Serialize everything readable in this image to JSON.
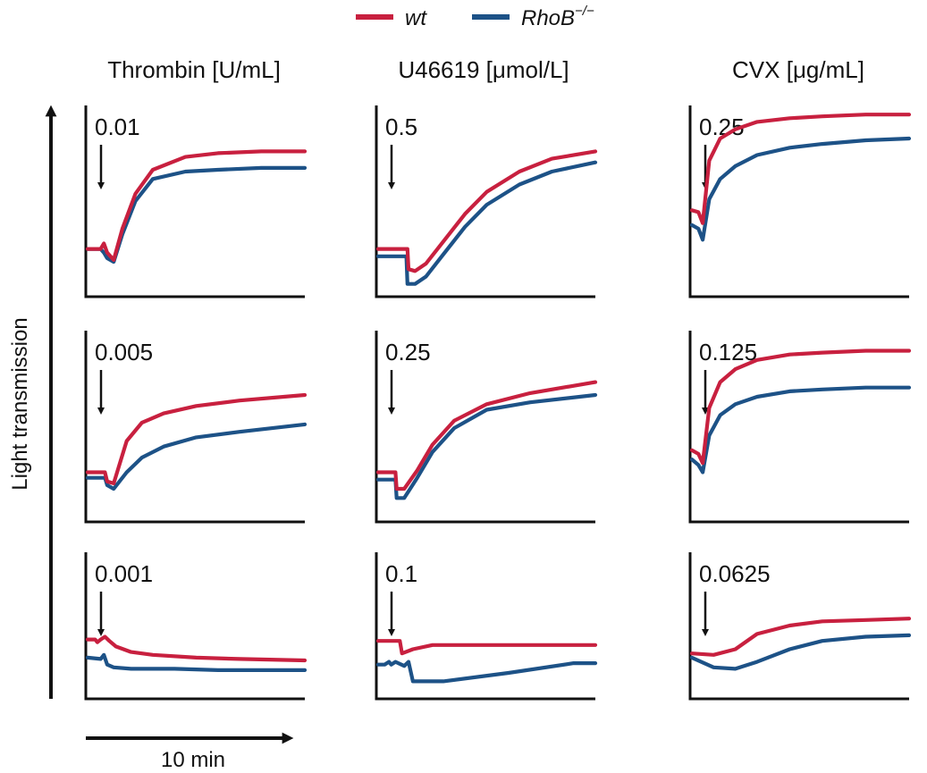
{
  "legend": {
    "wt": {
      "label": "wt",
      "color": "#c8203f"
    },
    "rhob": {
      "label": "RhoB",
      "superscript": "−/−",
      "color": "#1d5287"
    }
  },
  "axes": {
    "ylabel": "Light transmission",
    "xscale_label": "10 min"
  },
  "chart_data": {
    "type": "line",
    "title": "",
    "xlabel": "time (10 min scale bar)",
    "ylabel": "Light transmission",
    "x_domain": [
      0,
      10
    ],
    "ylim": [
      0,
      1
    ],
    "columns": [
      {
        "agonist": "Thrombin [U/mL]",
        "panels": [
          {
            "concentration": "0.01",
            "series": [
              {
                "name": "wt",
                "x": [
                  0,
                  0.6,
                  0.75,
                  0.9,
                  1.2,
                  1.6,
                  2.2,
                  3,
                  4.5,
                  6,
                  8,
                  10
                ],
                "values": [
                  0.24,
                  0.24,
                  0.27,
                  0.22,
                  0.18,
                  0.35,
                  0.54,
                  0.67,
                  0.74,
                  0.76,
                  0.77,
                  0.77
                ]
              },
              {
                "name": "RhoB−/−",
                "x": [
                  0,
                  0.6,
                  0.75,
                  0.9,
                  1.2,
                  1.6,
                  2.2,
                  3,
                  4.5,
                  6,
                  8,
                  10
                ],
                "values": [
                  0.24,
                  0.24,
                  0.22,
                  0.19,
                  0.17,
                  0.32,
                  0.5,
                  0.62,
                  0.66,
                  0.67,
                  0.68,
                  0.68
                ]
              }
            ]
          },
          {
            "concentration": "0.005",
            "series": [
              {
                "name": "wt",
                "x": [
                  0,
                  0.8,
                  0.9,
                  1.2,
                  1.8,
                  2.5,
                  3.5,
                  5,
                  7,
                  10
                ],
                "values": [
                  0.25,
                  0.25,
                  0.2,
                  0.19,
                  0.42,
                  0.52,
                  0.57,
                  0.61,
                  0.64,
                  0.67
                ]
              },
              {
                "name": "RhoB−/−",
                "x": [
                  0,
                  0.8,
                  0.9,
                  1.2,
                  1.8,
                  2.5,
                  3.5,
                  5,
                  7,
                  10
                ],
                "values": [
                  0.22,
                  0.22,
                  0.18,
                  0.16,
                  0.25,
                  0.33,
                  0.39,
                  0.44,
                  0.47,
                  0.51
                ]
              }
            ]
          },
          {
            "concentration": "0.001",
            "series": [
              {
                "name": "wt",
                "x": [
                  0,
                  0.35,
                  0.45,
                  0.6,
                  0.8,
                  1.0,
                  1.3,
                  2,
                  3,
                  5,
                  7,
                  10
                ],
                "values": [
                  0.4,
                  0.4,
                  0.38,
                  0.4,
                  0.42,
                  0.39,
                  0.35,
                  0.31,
                  0.29,
                  0.27,
                  0.26,
                  0.25
                ]
              },
              {
                "name": "RhoB−/−",
                "x": [
                  0,
                  0.6,
                  0.75,
                  0.9,
                  1.2,
                  2,
                  4,
                  6,
                  10
                ],
                "values": [
                  0.27,
                  0.26,
                  0.29,
                  0.22,
                  0.2,
                  0.19,
                  0.19,
                  0.18,
                  0.18
                ]
              }
            ]
          }
        ]
      },
      {
        "agonist": "U46619 [μmol/L]",
        "panels": [
          {
            "concentration": "0.5",
            "series": [
              {
                "name": "wt",
                "x": [
                  0,
                  1.35,
                  1.4,
                  1.7,
                  2.2,
                  3,
                  4,
                  5,
                  6.5,
                  8,
                  10
                ],
                "values": [
                  0.24,
                  0.24,
                  0.13,
                  0.12,
                  0.16,
                  0.28,
                  0.43,
                  0.55,
                  0.66,
                  0.73,
                  0.77
                ]
              },
              {
                "name": "RhoB−/−",
                "x": [
                  0,
                  1.3,
                  1.35,
                  1.7,
                  2.2,
                  3,
                  4,
                  5,
                  6.5,
                  8,
                  10
                ],
                "values": [
                  0.2,
                  0.2,
                  0.05,
                  0.05,
                  0.09,
                  0.21,
                  0.36,
                  0.48,
                  0.59,
                  0.66,
                  0.71
                ]
              }
            ]
          },
          {
            "concentration": "0.25",
            "series": [
              {
                "name": "wt",
                "x": [
                  0,
                  0.8,
                  0.85,
                  1.2,
                  1.8,
                  2.5,
                  3.5,
                  5,
                  7,
                  10
                ],
                "values": [
                  0.25,
                  0.25,
                  0.16,
                  0.16,
                  0.26,
                  0.4,
                  0.53,
                  0.62,
                  0.68,
                  0.74
                ]
              },
              {
                "name": "RhoB−/−",
                "x": [
                  0,
                  0.8,
                  0.85,
                  1.2,
                  1.8,
                  2.5,
                  3.5,
                  5,
                  7,
                  10
                ],
                "values": [
                  0.21,
                  0.21,
                  0.11,
                  0.11,
                  0.22,
                  0.36,
                  0.49,
                  0.59,
                  0.63,
                  0.67
                ]
              }
            ]
          },
          {
            "concentration": "0.1",
            "series": [
              {
                "name": "wt",
                "x": [
                  0,
                  1.0,
                  1.1,
                  1.6,
                  2.5,
                  4,
                  6,
                  8,
                  10
                ],
                "values": [
                  0.39,
                  0.39,
                  0.3,
                  0.33,
                  0.36,
                  0.36,
                  0.36,
                  0.36,
                  0.36
                ]
              },
              {
                "name": "RhoB−/−",
                "x": [
                  0,
                  0.3,
                  0.5,
                  0.6,
                  0.8,
                  1.2,
                  1.4,
                  1.6,
                  3,
                  6,
                  9,
                  10
                ],
                "values": [
                  0.22,
                  0.22,
                  0.24,
                  0.22,
                  0.24,
                  0.21,
                  0.24,
                  0.1,
                  0.1,
                  0.16,
                  0.23,
                  0.23
                ]
              }
            ]
          }
        ]
      },
      {
        "agonist": "CVX [μg/mL]",
        "panels": [
          {
            "concentration": "0.25",
            "series": [
              {
                "name": "wt",
                "x": [
                  0,
                  0.3,
                  0.5,
                  0.8,
                  1.3,
                  2,
                  3,
                  4.5,
                  6,
                  8,
                  10
                ],
                "values": [
                  0.45,
                  0.44,
                  0.38,
                  0.72,
                  0.84,
                  0.89,
                  0.93,
                  0.95,
                  0.96,
                  0.97,
                  0.97
                ]
              },
              {
                "name": "RhoB−/−",
                "x": [
                  0,
                  0.3,
                  0.5,
                  0.8,
                  1.3,
                  2,
                  3,
                  4.5,
                  6,
                  8,
                  10
                ],
                "values": [
                  0.37,
                  0.35,
                  0.29,
                  0.51,
                  0.62,
                  0.69,
                  0.75,
                  0.79,
                  0.81,
                  0.83,
                  0.84
                ]
              }
            ]
          },
          {
            "concentration": "0.125",
            "series": [
              {
                "name": "wt",
                "x": [
                  0,
                  0.3,
                  0.5,
                  0.8,
                  1.3,
                  2,
                  3,
                  4.5,
                  6,
                  8,
                  10
                ],
                "values": [
                  0.37,
                  0.35,
                  0.3,
                  0.6,
                  0.74,
                  0.81,
                  0.86,
                  0.89,
                  0.9,
                  0.91,
                  0.91
                ]
              },
              {
                "name": "RhoB−/−",
                "x": [
                  0,
                  0.3,
                  0.5,
                  0.8,
                  1.3,
                  2,
                  3,
                  4.5,
                  6,
                  8,
                  10
                ],
                "values": [
                  0.32,
                  0.29,
                  0.25,
                  0.45,
                  0.56,
                  0.62,
                  0.66,
                  0.69,
                  0.7,
                  0.71,
                  0.71
                ]
              }
            ]
          },
          {
            "concentration": "0.0625",
            "series": [
              {
                "name": "wt",
                "x": [
                  0,
                  1,
                  2,
                  3,
                  4.5,
                  6,
                  8,
                  10
                ],
                "values": [
                  0.3,
                  0.29,
                  0.33,
                  0.44,
                  0.5,
                  0.53,
                  0.54,
                  0.55
                ]
              },
              {
                "name": "RhoB−/−",
                "x": [
                  0,
                  1,
                  2,
                  3,
                  4.5,
                  6,
                  8,
                  10
                ],
                "values": [
                  0.27,
                  0.2,
                  0.19,
                  0.24,
                  0.33,
                  0.39,
                  0.42,
                  0.43
                ]
              }
            ]
          }
        ]
      }
    ]
  }
}
